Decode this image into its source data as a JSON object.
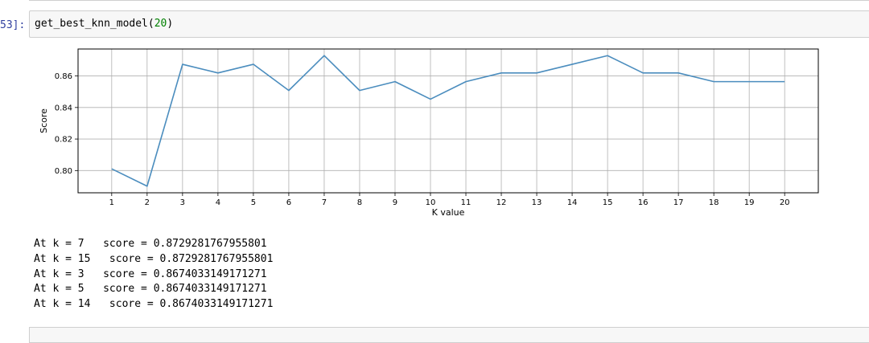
{
  "notebook": {
    "cell": {
      "prompt": "53]:",
      "code": {
        "func": "get_best_knn_model(",
        "arg": "20",
        "close": ")"
      }
    },
    "output_lines": [
      "At k = 7   score = 0.8729281767955801",
      "At k = 15   score = 0.8729281767955801",
      "At k = 3   score = 0.8674033149171271",
      "At k = 5   score = 0.8674033149171271",
      "At k = 14   score = 0.8674033149171271"
    ]
  },
  "chart_data": {
    "type": "line",
    "xlabel": "K value",
    "ylabel": "Score",
    "x": [
      1,
      2,
      3,
      4,
      5,
      6,
      7,
      8,
      9,
      10,
      11,
      12,
      13,
      14,
      15,
      16,
      17,
      18,
      19,
      20
    ],
    "y": [
      0.8011,
      0.7901,
      0.8674,
      0.8619,
      0.8674,
      0.8508,
      0.8729,
      0.8508,
      0.8564,
      0.8453,
      0.8564,
      0.8619,
      0.8619,
      0.8674,
      0.8729,
      0.8619,
      0.8619,
      0.8564,
      0.8564,
      0.8564
    ],
    "xticks": [
      "1",
      "2",
      "3",
      "4",
      "5",
      "6",
      "7",
      "8",
      "9",
      "10",
      "11",
      "12",
      "13",
      "14",
      "15",
      "16",
      "17",
      "18",
      "19",
      "20"
    ],
    "yticks": [
      "0.80",
      "0.82",
      "0.84",
      "0.86"
    ],
    "ytick_values": [
      0.8,
      0.82,
      0.84,
      0.86
    ],
    "xlim": [
      0.05,
      20.95
    ],
    "ylim": [
      0.7859,
      0.8771
    ],
    "grid": true,
    "line_color": "#4b8dbe"
  }
}
